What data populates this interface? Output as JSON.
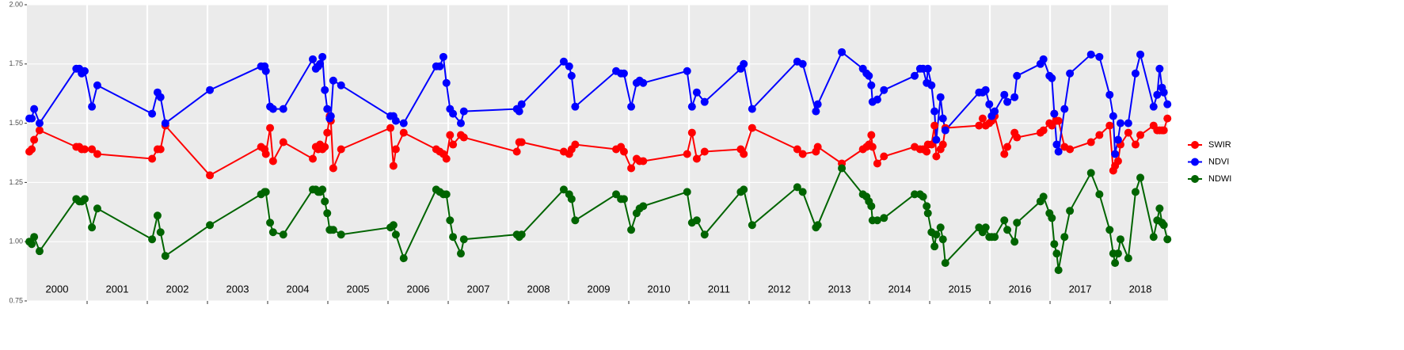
{
  "chart_data": {
    "type": "line",
    "x": [
      2000.04,
      2000.08,
      2000.12,
      2000.21,
      2000.82,
      2000.87,
      2000.91,
      2000.96,
      2001.08,
      2001.17,
      2002.08,
      2002.17,
      2002.22,
      2002.3,
      2003.04,
      2003.89,
      2003.95,
      2003.97,
      2004.04,
      2004.09,
      2004.26,
      2004.75,
      2004.8,
      2004.84,
      2004.87,
      2004.91,
      2004.95,
      2004.99,
      2005.03,
      2005.05,
      2005.09,
      2005.22,
      2006.04,
      2006.09,
      2006.13,
      2006.26,
      2006.8,
      2006.86,
      2006.92,
      2006.97,
      2007.03,
      2007.08,
      2007.21,
      2007.26,
      2008.14,
      2008.18,
      2008.22,
      2008.92,
      2009.01,
      2009.05,
      2009.11,
      2009.79,
      2009.87,
      2009.92,
      2010.04,
      2010.13,
      2010.18,
      2010.24,
      2010.97,
      2011.05,
      2011.13,
      2011.26,
      2011.86,
      2011.91,
      2012.05,
      2012.8,
      2012.89,
      2013.11,
      2013.14,
      2013.54,
      2013.89,
      2013.95,
      2013.99,
      2014.03,
      2014.05,
      2014.13,
      2014.24,
      2014.75,
      2014.84,
      2014.89,
      2014.95,
      2014.97,
      2015.03,
      2015.08,
      2015.11,
      2015.18,
      2015.22,
      2015.26,
      2015.82,
      2015.88,
      2015.93,
      2015.99,
      2016.03,
      2016.08,
      2016.24,
      2016.29,
      2016.41,
      2016.45,
      2016.84,
      2016.89,
      2016.99,
      2017.03,
      2017.07,
      2017.11,
      2017.14,
      2017.24,
      2017.33,
      2017.68,
      2017.82,
      2017.99,
      2018.05,
      2018.08,
      2018.13,
      2018.17,
      2018.3,
      2018.42,
      2018.5,
      2018.72,
      2018.78,
      2018.82,
      2018.86,
      2018.89,
      2018.95
    ],
    "series": [
      {
        "name": "SWIR",
        "color": "#ff0000",
        "values": [
          1.38,
          1.39,
          1.43,
          1.47,
          1.4,
          1.4,
          1.39,
          1.39,
          1.39,
          1.37,
          1.35,
          1.39,
          1.39,
          1.49,
          1.28,
          1.4,
          1.39,
          1.37,
          1.48,
          1.34,
          1.42,
          1.35,
          1.4,
          1.39,
          1.41,
          1.39,
          1.4,
          1.46,
          1.53,
          1.51,
          1.31,
          1.39,
          1.48,
          1.32,
          1.39,
          1.46,
          1.39,
          1.38,
          1.37,
          1.35,
          1.45,
          1.41,
          1.45,
          1.44,
          1.38,
          1.42,
          1.42,
          1.38,
          1.37,
          1.39,
          1.41,
          1.39,
          1.4,
          1.38,
          1.31,
          1.35,
          1.34,
          1.34,
          1.37,
          1.46,
          1.35,
          1.38,
          1.39,
          1.37,
          1.48,
          1.39,
          1.37,
          1.38,
          1.4,
          1.33,
          1.39,
          1.4,
          1.41,
          1.45,
          1.4,
          1.33,
          1.36,
          1.4,
          1.39,
          1.39,
          1.38,
          1.41,
          1.41,
          1.49,
          1.36,
          1.39,
          1.41,
          1.48,
          1.49,
          1.52,
          1.49,
          1.5,
          1.51,
          1.53,
          1.37,
          1.4,
          1.46,
          1.44,
          1.46,
          1.47,
          1.5,
          1.49,
          1.54,
          1.51,
          1.51,
          1.4,
          1.39,
          1.42,
          1.45,
          1.49,
          1.3,
          1.32,
          1.34,
          1.41,
          1.46,
          1.41,
          1.45,
          1.49,
          1.47,
          1.47,
          1.47,
          1.47,
          1.52
        ]
      },
      {
        "name": "NDVI",
        "color": "#0000ff",
        "values": [
          1.52,
          1.52,
          1.56,
          1.5,
          1.73,
          1.73,
          1.71,
          1.72,
          1.57,
          1.66,
          1.54,
          1.63,
          1.61,
          1.5,
          1.64,
          1.74,
          1.74,
          1.72,
          1.57,
          1.56,
          1.56,
          1.77,
          1.73,
          1.74,
          1.75,
          1.78,
          1.64,
          1.56,
          1.52,
          1.53,
          1.68,
          1.66,
          1.53,
          1.53,
          1.51,
          1.5,
          1.74,
          1.74,
          1.78,
          1.67,
          1.56,
          1.54,
          1.5,
          1.55,
          1.56,
          1.55,
          1.58,
          1.76,
          1.74,
          1.7,
          1.57,
          1.72,
          1.71,
          1.71,
          1.57,
          1.67,
          1.68,
          1.67,
          1.72,
          1.57,
          1.63,
          1.59,
          1.73,
          1.75,
          1.56,
          1.76,
          1.75,
          1.55,
          1.58,
          1.8,
          1.73,
          1.71,
          1.7,
          1.66,
          1.59,
          1.6,
          1.64,
          1.7,
          1.73,
          1.73,
          1.67,
          1.73,
          1.66,
          1.55,
          1.43,
          1.61,
          1.52,
          1.47,
          1.63,
          1.63,
          1.64,
          1.58,
          1.53,
          1.55,
          1.62,
          1.59,
          1.61,
          1.7,
          1.75,
          1.77,
          1.7,
          1.69,
          1.54,
          1.41,
          1.38,
          1.56,
          1.71,
          1.79,
          1.78,
          1.62,
          1.53,
          1.37,
          1.43,
          1.5,
          1.5,
          1.71,
          1.79,
          1.57,
          1.62,
          1.73,
          1.65,
          1.63,
          1.58
        ]
      },
      {
        "name": "NDWI",
        "color": "#006400",
        "values": [
          1.0,
          0.99,
          1.02,
          0.96,
          1.18,
          1.17,
          1.17,
          1.18,
          1.06,
          1.14,
          1.01,
          1.11,
          1.04,
          0.94,
          1.07,
          1.2,
          1.21,
          1.21,
          1.08,
          1.04,
          1.03,
          1.22,
          1.22,
          1.21,
          1.21,
          1.22,
          1.17,
          1.12,
          1.05,
          1.05,
          1.05,
          1.03,
          1.06,
          1.07,
          1.03,
          0.93,
          1.22,
          1.21,
          1.2,
          1.2,
          1.09,
          1.02,
          0.95,
          1.01,
          1.03,
          1.02,
          1.03,
          1.22,
          1.2,
          1.18,
          1.09,
          1.2,
          1.18,
          1.18,
          1.05,
          1.12,
          1.14,
          1.15,
          1.21,
          1.08,
          1.09,
          1.03,
          1.21,
          1.22,
          1.07,
          1.23,
          1.21,
          1.06,
          1.07,
          1.31,
          1.2,
          1.19,
          1.17,
          1.15,
          1.09,
          1.09,
          1.1,
          1.2,
          1.2,
          1.19,
          1.15,
          1.12,
          1.04,
          0.98,
          1.03,
          1.06,
          1.01,
          0.91,
          1.06,
          1.04,
          1.06,
          1.02,
          1.02,
          1.02,
          1.09,
          1.05,
          1.0,
          1.08,
          1.17,
          1.19,
          1.12,
          1.1,
          0.99,
          0.95,
          0.88,
          1.02,
          1.13,
          1.29,
          1.2,
          1.05,
          0.95,
          0.91,
          0.95,
          1.01,
          0.93,
          1.21,
          1.27,
          1.02,
          1.09,
          1.14,
          1.08,
          1.07,
          1.01
        ]
      }
    ],
    "xlim": [
      2000,
      2018.96
    ],
    "xticks": [
      2001,
      2002,
      2003,
      2004,
      2005,
      2006,
      2007,
      2008,
      2009,
      2010,
      2011,
      2012,
      2013,
      2014,
      2015,
      2016,
      2017,
      2018
    ],
    "year_labels": [
      2000,
      2001,
      2002,
      2003,
      2004,
      2005,
      2006,
      2007,
      2008,
      2009,
      2010,
      2011,
      2012,
      2013,
      2014,
      2015,
      2016,
      2017,
      2018
    ],
    "ylim": [
      0.75,
      2.0
    ],
    "yticks": [
      0.75,
      {
        "value": 1.0,
        "label": "1.00"
      },
      1.25,
      {
        "value": 1.5,
        "label": "1.50"
      },
      1.75,
      {
        "value": 2.0,
        "label": "2.00"
      }
    ],
    "grid": true,
    "legend": "right"
  }
}
